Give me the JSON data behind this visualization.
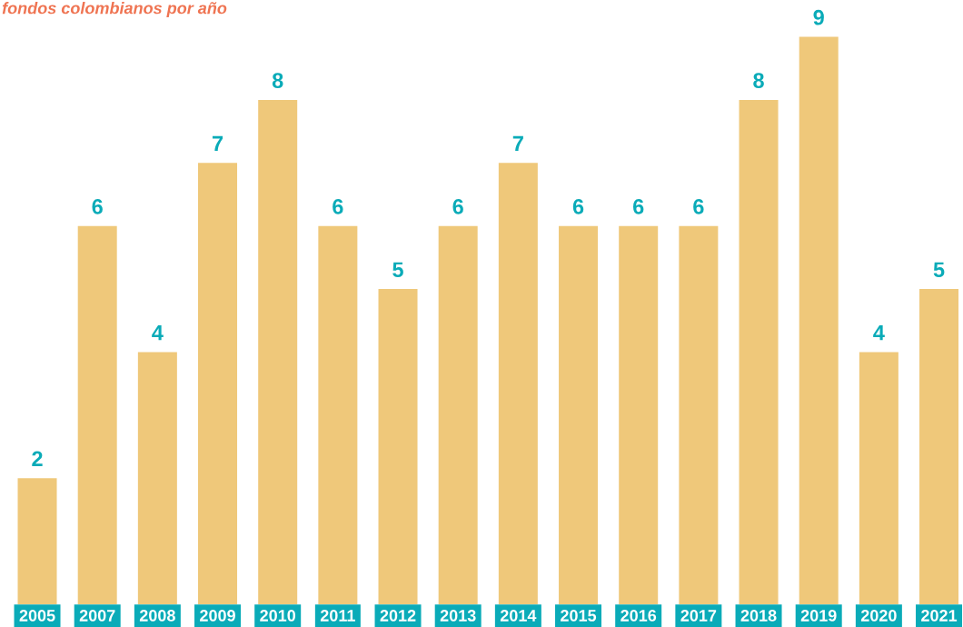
{
  "chart_data": {
    "type": "bar",
    "title": "fondos colombianos por año",
    "categories": [
      "2005",
      "2007",
      "2008",
      "2009",
      "2010",
      "2011",
      "2012",
      "2013",
      "2014",
      "2015",
      "2016",
      "2017",
      "2018",
      "2019",
      "2020",
      "2021"
    ],
    "values": [
      2,
      6,
      4,
      7,
      8,
      6,
      5,
      6,
      7,
      6,
      6,
      6,
      8,
      9,
      4,
      5
    ],
    "color": "#efc87a",
    "data_labels": true,
    "grid": false,
    "legend": false,
    "tick_labels": "x"
  }
}
